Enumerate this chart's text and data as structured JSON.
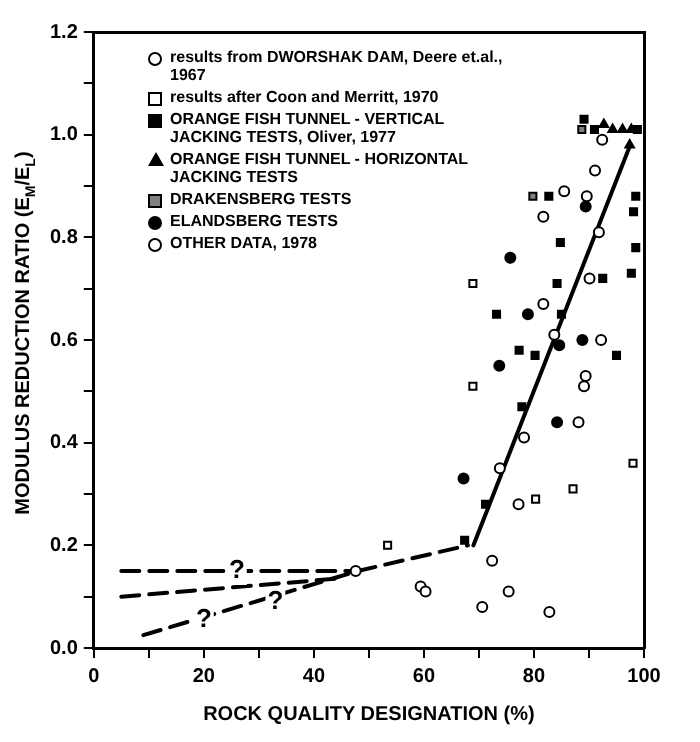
{
  "chart_data": {
    "type": "scatter",
    "xlabel": "ROCK QUALITY DESIGNATION (%)",
    "ylabel": "MODULUS REDUCTION RATIO (E$_{M}$/E$_{L}$)",
    "xlim": [
      0,
      100
    ],
    "xticks": [
      0,
      {
        "value": 10,
        "label": null
      },
      20,
      {
        "value": 30,
        "label": null
      },
      40,
      {
        "value": 50,
        "label": null
      },
      60,
      {
        "value": 70,
        "label": null
      },
      80,
      {
        "value": 90,
        "label": null
      },
      100
    ],
    "ylim": [
      0,
      1.2
    ],
    "yticks": [
      {
        "value": 0,
        "label": "0.0"
      },
      {
        "value": 0.1,
        "label": null
      },
      {
        "value": 0.2,
        "label": "0.2"
      },
      {
        "value": 0.3,
        "label": null
      },
      {
        "value": 0.4,
        "label": "0.4"
      },
      {
        "value": 0.5,
        "label": null
      },
      {
        "value": 0.6,
        "label": "0.6"
      },
      {
        "value": 0.7,
        "label": null
      },
      {
        "value": 0.8,
        "label": "0.8"
      },
      {
        "value": 0.9,
        "label": null
      },
      {
        "value": 1.0,
        "label": "1.0"
      },
      {
        "value": 1.1,
        "label": null
      },
      {
        "value": 1.2,
        "label": "1.2"
      }
    ],
    "legend": "top left",
    "series": [
      {
        "name": "results from DWORSHAK DAM, Deere et.al., 1967",
        "color": "#ffffff",
        "marker": "circle",
        "x": [
          92.4,
          91.1,
          85.5,
          89.6,
          81.7,
          91.8,
          90.1,
          81.7,
          83.7,
          92.2,
          89.4,
          89.1,
          88.1,
          78.2,
          73.8,
          77.2,
          72.4,
          59.4,
          60.3,
          75.4,
          70.6,
          82.8
        ],
        "values": [
          0.99,
          0.93,
          0.89,
          0.88,
          0.84,
          0.81,
          0.72,
          0.67,
          0.61,
          0.6,
          0.53,
          0.51,
          0.44,
          0.41,
          0.35,
          0.28,
          0.17,
          0.12,
          0.11,
          0.11,
          0.08,
          0.07
        ]
      },
      {
        "name": "results after Coon and Merritt, 1970",
        "color": "#ffffff",
        "marker": "square",
        "x": [
          68.9,
          68.9,
          98.0,
          80.3,
          87.1,
          53.4
        ],
        "values": [
          0.71,
          0.51,
          0.36,
          0.29,
          0.31,
          0.2
        ]
      },
      {
        "name": "ORANGE FISH TUNNEL - VERTICAL JACKING TESTS, Oliver, 1977",
        "color": "#000000",
        "marker": "square",
        "x": [
          89.1,
          91.0,
          98.8,
          82.7,
          98.5,
          98.1,
          84.8,
          98.5,
          84.2,
          92.5,
          97.7,
          73.2,
          85.0,
          77.3,
          95.0,
          80.2,
          77.8,
          71.2,
          67.4
        ],
        "values": [
          1.03,
          1.01,
          1.01,
          0.88,
          0.88,
          0.85,
          0.79,
          0.78,
          0.71,
          0.72,
          0.73,
          0.65,
          0.65,
          0.58,
          0.57,
          0.57,
          0.47,
          0.28,
          0.21
        ]
      },
      {
        "name": "ORANGE FISH TUNNEL - HORIZONTAL JACKING TESTS",
        "color": "#000000",
        "marker": "triangle",
        "x": [
          92.7,
          94.3,
          96.1,
          97.7,
          97.4
        ],
        "values": [
          1.02,
          1.01,
          1.01,
          1.01,
          0.98
        ]
      },
      {
        "name": "DRAKENSBERG TESTS",
        "color": "#808080",
        "marker": "square",
        "x": [
          88.7,
          79.8
        ],
        "values": [
          1.01,
          0.88
        ]
      },
      {
        "name": "ELANDSBERG TESTS",
        "color": "#000000",
        "marker": "circle",
        "x": [
          89.4,
          75.7,
          78.9,
          88.8,
          84.6,
          73.7,
          84.2,
          67.2
        ],
        "values": [
          0.86,
          0.76,
          0.65,
          0.6,
          0.59,
          0.55,
          0.44,
          0.33
        ]
      },
      {
        "name": "OTHER DATA, 1978",
        "color": "#ffffff",
        "marker": "circle",
        "x": [
          47.6
        ],
        "values": [
          0.15
        ]
      },
      {
        "type": "line",
        "color": "#000000",
        "line_style": "dashed",
        "marker": "none",
        "x": [
          5,
          47
        ],
        "values": [
          0.15,
          0.15
        ]
      },
      {
        "type": "line",
        "color": "#000000",
        "line_style": "dashed",
        "marker": "none",
        "x": [
          5,
          44
        ],
        "values": [
          0.1,
          0.135
        ]
      },
      {
        "type": "line",
        "color": "#000000",
        "line_style": "dashed",
        "marker": "none",
        "x": [
          9,
          48
        ],
        "values": [
          0.025,
          0.15
        ]
      },
      {
        "type": "line",
        "color": "#000000",
        "line_style": "dashed",
        "marker": "none",
        "x": [
          48,
          68
        ],
        "values": [
          0.15,
          0.2
        ]
      },
      {
        "type": "line",
        "color": "#000000",
        "line_style": "solid",
        "marker": "none",
        "x": [
          69,
          97.5
        ],
        "values": [
          0.2,
          0.98
        ]
      }
    ],
    "annotations": [
      {
        "text": "?",
        "x": 26,
        "y": 0.15
      },
      {
        "text": "?",
        "x": 20,
        "y": 0.055
      },
      {
        "text": "?",
        "x": 33,
        "y": 0.09
      }
    ]
  }
}
